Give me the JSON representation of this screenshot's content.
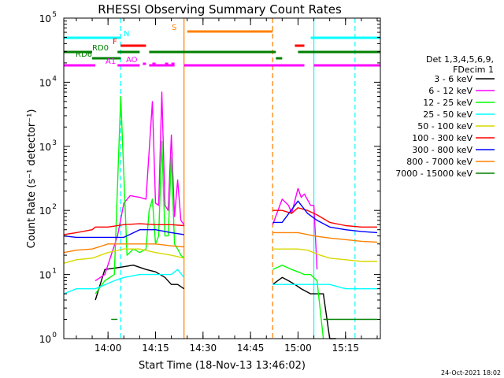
{
  "chart_data": {
    "type": "line",
    "title": "RHESSI Observing Summary Count Rates",
    "xlabel": "Start Time (18-Nov-13 13:46:02)",
    "ylabel": "Count Rate (s⁻¹ detector⁻¹)",
    "x_unit": "UT time (18-Nov-2013)",
    "xlim": [
      "13:46:02",
      "15:26"
    ],
    "x_ticks": [
      "14:00",
      "14:15",
      "14:30",
      "14:45",
      "15:00",
      "15:15"
    ],
    "y_scale": "log",
    "ylim": [
      1,
      100000
    ],
    "y_ticks": [
      {
        "value": 1,
        "label": "10",
        "exp": "0"
      },
      {
        "value": 10,
        "label": "10",
        "exp": "1"
      },
      {
        "value": 100,
        "label": "10",
        "exp": "2"
      },
      {
        "value": 1000,
        "label": "10",
        "exp": "3"
      },
      {
        "value": 10000,
        "label": "10",
        "exp": "4"
      },
      {
        "value": 100000,
        "label": "10",
        "exp": "5"
      }
    ],
    "legend_placement": "right",
    "legend_header": [
      "Det 1,3,4,5,6,9,",
      "FDecim 1"
    ],
    "series": [
      {
        "name": "3 - 6 keV",
        "color": "#000000",
        "segments": [
          {
            "x": [
              "13:46",
              "13:55",
              "13:56",
              "13:59",
              "14:04",
              "14:08",
              "14:12",
              "14:15",
              "14:18",
              "14:20",
              "14:22",
              "14:24"
            ],
            "y": [
              null,
              null,
              4,
              12,
              13,
              14,
              12,
              11,
              9,
              7,
              7,
              6
            ]
          },
          {
            "x": [
              "14:52",
              "14:55",
              "14:57",
              "14:59",
              "15:01",
              "15:04",
              "15:06",
              "15:08",
              "15:10",
              "15:12"
            ],
            "y": [
              7,
              9,
              8,
              7,
              6,
              5,
              5,
              5,
              1,
              1
            ]
          }
        ]
      },
      {
        "name": "6 - 12 keV",
        "color": "#ff00ff",
        "segments": [
          {
            "x": [
              "13:56",
              "13:59",
              "14:03",
              "14:05",
              "14:07",
              "14:10",
              "14:12",
              "14:14",
              "14:15",
              "14:16",
              "14:17",
              "14:18",
              "14:19",
              "14:20",
              "14:21",
              "14:22",
              "14:23",
              "14:24"
            ],
            "y": [
              8,
              10,
              40,
              130,
              170,
              160,
              150,
              5000,
              130,
              120,
              7000,
              120,
              100,
              1500,
              80,
              300,
              70,
              60
            ]
          },
          {
            "x": [
              "14:52",
              "14:55",
              "14:57",
              "14:58",
              "15:00",
              "15:01",
              "15:02",
              "15:04",
              "15:05",
              "15:06"
            ],
            "y": [
              60,
              150,
              120,
              90,
              220,
              160,
              180,
              120,
              120,
              12
            ]
          }
        ]
      },
      {
        "name": "12 - 25 keV",
        "color": "#00ff00",
        "segments": [
          {
            "x": [
              "13:56",
              "13:59",
              "14:02",
              "14:04",
              "14:06",
              "14:08",
              "14:10",
              "14:12",
              "14:13",
              "14:14",
              "14:15",
              "14:16",
              "14:17",
              "14:18",
              "14:19",
              "14:20",
              "14:21",
              "14:22",
              "14:23",
              "14:24"
            ],
            "y": [
              5,
              8,
              10,
              6000,
              20,
              25,
              22,
              25,
              100,
              150,
              30,
              40,
              1200,
              40,
              40,
              700,
              30,
              25,
              20,
              18
            ]
          },
          {
            "x": [
              "14:52",
              "14:55",
              "14:58",
              "15:00",
              "15:02",
              "15:04",
              "15:06",
              "15:08"
            ],
            "y": [
              12,
              14,
              12,
              11,
              10,
              10,
              8,
              1
            ]
          }
        ]
      },
      {
        "name": "25 - 50 keV",
        "color": "#00ffff",
        "segments": [
          {
            "x": [
              "13:46",
              "13:50",
              "13:55",
              "13:56",
              "14:02",
              "14:05",
              "14:10",
              "14:15",
              "14:20",
              "14:22",
              "14:24"
            ],
            "y": [
              5,
              6,
              6,
              6,
              8,
              9,
              10,
              10,
              10,
              12,
              9
            ]
          },
          {
            "x": [
              "14:52",
              "14:57",
              "15:00",
              "15:03",
              "15:06",
              "15:10",
              "15:15",
              "15:20",
              "15:25"
            ],
            "y": [
              7,
              7,
              7,
              7,
              7,
              7,
              6,
              6,
              6
            ]
          }
        ]
      },
      {
        "name": "50 - 100 keV",
        "color": "#d8d800",
        "segments": [
          {
            "x": [
              "13:46",
              "13:50",
              "13:55",
              "14:00",
              "14:05",
              "14:10",
              "14:15",
              "14:20",
              "14:24"
            ],
            "y": [
              15,
              17,
              18,
              22,
              25,
              25,
              22,
              20,
              18
            ]
          },
          {
            "x": [
              "14:52",
              "14:55",
              "15:00",
              "15:03",
              "15:07",
              "15:10",
              "15:15",
              "15:20",
              "15:25"
            ],
            "y": [
              25,
              25,
              25,
              24,
              20,
              18,
              17,
              16,
              16
            ]
          }
        ]
      },
      {
        "name": "100 - 300 keV",
        "color": "#ff0000",
        "segments": [
          {
            "x": [
              "13:46",
              "13:50",
              "13:55",
              "13:56",
              "14:00",
              "14:05",
              "14:10",
              "14:15",
              "14:20",
              "14:24"
            ],
            "y": [
              42,
              45,
              50,
              55,
              55,
              60,
              62,
              60,
              60,
              58
            ]
          },
          {
            "x": [
              "14:52",
              "14:55",
              "14:58",
              "15:00",
              "15:03",
              "15:06",
              "15:10",
              "15:15",
              "15:20",
              "15:25"
            ],
            "y": [
              100,
              100,
              90,
              110,
              100,
              85,
              65,
              58,
              55,
              55
            ]
          }
        ]
      },
      {
        "name": "300 - 800 keV",
        "color": "#0000ff",
        "segments": [
          {
            "x": [
              "13:46",
              "13:50",
              "13:55",
              "14:00",
              "14:05",
              "14:10",
              "14:15",
              "14:20",
              "14:24"
            ],
            "y": [
              40,
              38,
              38,
              38,
              38,
              50,
              50,
              45,
              42
            ]
          },
          {
            "x": [
              "14:52",
              "14:55",
              "15:00",
              "15:03",
              "15:06",
              "15:10",
              "15:15",
              "15:20",
              "15:25"
            ],
            "y": [
              65,
              65,
              140,
              90,
              70,
              55,
              50,
              47,
              45
            ]
          }
        ]
      },
      {
        "name": "800 - 7000 keV",
        "color": "#ff8000",
        "segments": [
          {
            "x": [
              "13:46",
              "13:50",
              "13:55",
              "14:00",
              "14:05",
              "14:10",
              "14:15",
              "14:20",
              "14:24"
            ],
            "y": [
              22,
              24,
              25,
              30,
              30,
              30,
              30,
              28,
              27
            ]
          },
          {
            "x": [
              "14:52",
              "14:55",
              "15:00",
              "15:05",
              "15:10",
              "15:15",
              "15:20",
              "15:25"
            ],
            "y": [
              45,
              45,
              45,
              40,
              37,
              35,
              33,
              32
            ]
          }
        ]
      },
      {
        "name": "7000 - 15000 keV",
        "color": "#008000",
        "segments": [
          {
            "x": [
              "13:46",
              "14:01",
              "14:01",
              "14:03"
            ],
            "y": [
              null,
              null,
              2,
              2
            ]
          },
          {
            "x": [
              "15:08",
              "15:10",
              "15:15",
              "15:20",
              "15:25"
            ],
            "y": [
              2,
              2,
              2,
              2,
              2
            ]
          }
        ]
      }
    ],
    "state_bars": [
      {
        "label": "N",
        "color": "#00ffff",
        "segments": [
          [
            "13:46",
            "14:04"
          ],
          [
            "15:04",
            "15:26"
          ]
        ]
      },
      {
        "label": "F",
        "color": "#ff0000",
        "segments": [
          [
            "14:04",
            "14:12"
          ],
          [
            "14:59",
            "15:02"
          ]
        ]
      },
      {
        "label": "RD0",
        "color": "#008000",
        "segments": [
          [
            "13:46",
            "13:55"
          ],
          [
            "14:03",
            "14:10"
          ],
          [
            "14:13",
            "14:53"
          ],
          [
            "15:00",
            "15:26"
          ]
        ]
      },
      {
        "label": "RD6",
        "color": "#008000",
        "segments": [
          [
            "13:55",
            "14:04"
          ],
          [
            "14:53",
            "14:55"
          ]
        ]
      },
      {
        "label": "AO",
        "color": "#ff00ff",
        "segments": [
          [
            "14:11",
            "14:12"
          ],
          [
            "14:14",
            "14:15"
          ],
          [
            "14:18",
            "14:19"
          ],
          [
            "14:20",
            "14:21"
          ]
        ]
      },
      {
        "label": "A1",
        "color": "#ff00ff",
        "segments": [
          [
            "13:46",
            "13:56"
          ],
          [
            "14:03",
            "14:10"
          ],
          [
            "14:13",
            "14:21"
          ],
          [
            "14:24",
            "15:02"
          ],
          [
            "15:05",
            "15:26"
          ]
        ]
      },
      {
        "label": "S",
        "color": "#ff8000",
        "segments": [
          [
            "14:25",
            "14:52"
          ]
        ]
      }
    ],
    "markers": [
      {
        "at": "14:04",
        "color": "#00ffff",
        "style": "dashed"
      },
      {
        "at": "14:24",
        "color": "#ff8000",
        "style": "solid"
      },
      {
        "at": "14:52",
        "color": "#ff8000",
        "style": "dashed"
      },
      {
        "at": "15:05",
        "color": "#00ffff",
        "style": "solid"
      },
      {
        "at": "15:18",
        "color": "#00ffff",
        "style": "dashed"
      }
    ],
    "timestamp": "24-Oct-2021 18:02"
  }
}
